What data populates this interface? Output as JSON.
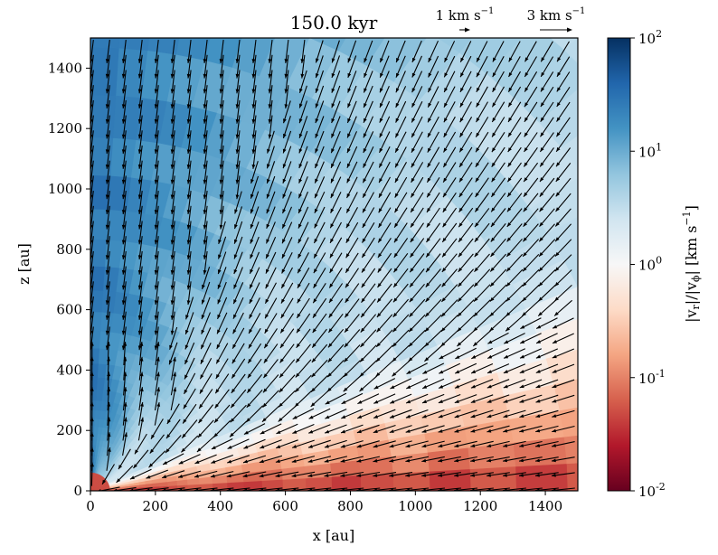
{
  "chart_data": {
    "type": "heatmap",
    "title": "150.0 kyr",
    "xlabel": "x [au]",
    "ylabel": "z [au]",
    "xlim": [
      0,
      1500
    ],
    "ylim": [
      0,
      1500
    ],
    "xticks": [
      "0",
      "200",
      "400",
      "600",
      "800",
      "1000",
      "1200",
      "1400"
    ],
    "yticks": [
      "0",
      "200",
      "400",
      "600",
      "800",
      "1000",
      "1200",
      "1400"
    ],
    "colorbar": {
      "label": "|v_r|/|v_φ| [km s^-1]",
      "scale": "log",
      "range": [
        0.01,
        100
      ],
      "ticks": [
        {
          "base": "10",
          "exp": "-2"
        },
        {
          "base": "10",
          "exp": "-1"
        },
        {
          "base": "10",
          "exp": "0"
        },
        {
          "base": "10",
          "exp": "1"
        },
        {
          "base": "10",
          "exp": "2"
        }
      ],
      "colormap": [
        "#67001f",
        "#b2182b",
        "#d6604d",
        "#f4a582",
        "#fddbc7",
        "#f7f7f7",
        "#d1e5f0",
        "#92c5de",
        "#4393c3",
        "#2166ac",
        "#053061"
      ]
    },
    "vector_key": [
      {
        "label": "1 km s",
        "exp": "−1",
        "speed_kms": 1
      },
      {
        "label": "3 km s",
        "exp": "−1",
        "speed_kms": 3
      }
    ],
    "field_description": "Spherical grid; polar/outflow region (θ < ~45°) shows ratio ~10 (blue) with outward arrows near axis; equatorial region shows ratio ~0.03–0.3 (red) with infalling arrows; intermediate ratio ~1 (white) at mid angles.",
    "sample_regions": [
      {
        "region": "polar axis",
        "ratio": 20
      },
      {
        "region": "upper far field",
        "ratio": 6
      },
      {
        "region": "mid latitude",
        "ratio": 1
      },
      {
        "region": "equatorial disk",
        "ratio": 0.06
      },
      {
        "region": "disk edge hotspots",
        "ratio": 0.012
      }
    ]
  }
}
